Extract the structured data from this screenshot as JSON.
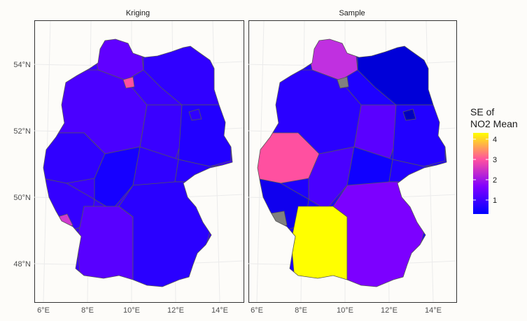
{
  "panels": [
    {
      "strip_label": "Kriging"
    },
    {
      "strip_label": "Sample"
    }
  ],
  "axes": {
    "y_ticks": [
      "54°N",
      "52°N",
      "50°N",
      "48°N"
    ],
    "x_ticks": [
      "6°E",
      "8°E",
      "10°E",
      "12°E",
      "14°E"
    ]
  },
  "legend": {
    "title_line1": "SE of",
    "title_line2": "NO2 Mean",
    "ticks": [
      "4",
      "3",
      "2",
      "1"
    ],
    "gradient": [
      "#ffff00",
      "#ff50a0",
      "#8000ff",
      "#0000ff"
    ]
  },
  "colors": {
    "missing": "#808080",
    "panel_border": "#333333",
    "grid": "#ebebeb"
  }
}
